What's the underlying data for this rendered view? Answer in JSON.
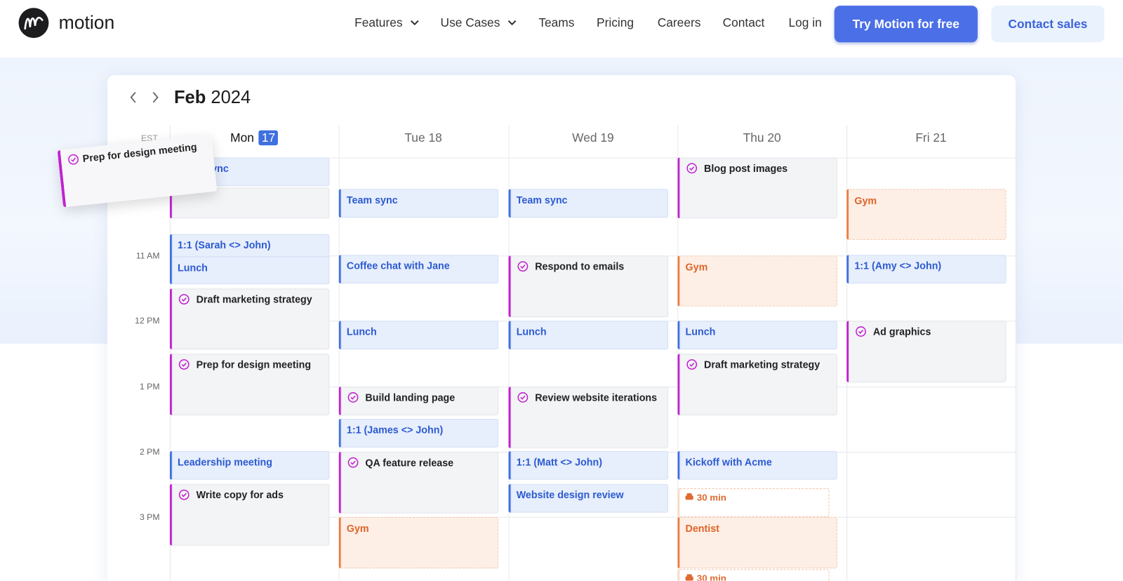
{
  "header": {
    "brand": "motion",
    "nav": [
      "Features",
      "Use Cases",
      "Teams",
      "Pricing",
      "Careers",
      "Contact",
      "Log in"
    ],
    "cta_primary": "Try Motion for free",
    "cta_secondary": "Contact sales"
  },
  "calendar": {
    "month": "Feb",
    "year": "2024",
    "timezone": "EST",
    "hours": [
      "11 AM",
      "12 PM",
      "1 PM",
      "2 PM",
      "3 PM"
    ],
    "days": [
      {
        "name": "Mon",
        "date": "17",
        "events": [
          {
            "title": "Team sync"
          },
          {
            "title": "1:1 (Sarah <> John)"
          },
          {
            "title": "Lunch"
          },
          {
            "title": "Draft marketing strategy"
          },
          {
            "title": "Prep for design meeting"
          },
          {
            "title": "Leadership meeting"
          },
          {
            "title": "Write copy for ads"
          }
        ]
      },
      {
        "name": "Tue",
        "date": "18",
        "events": [
          {
            "title": "Team sync"
          },
          {
            "title": "Coffee chat with Jane"
          },
          {
            "title": "Lunch"
          },
          {
            "title": "Build landing page"
          },
          {
            "title": "1:1 (James <> John)"
          },
          {
            "title": "QA feature release"
          },
          {
            "title": "Gym"
          }
        ]
      },
      {
        "name": "Wed",
        "date": "19",
        "events": [
          {
            "title": "Team sync"
          },
          {
            "title": "Respond to emails"
          },
          {
            "title": "Lunch"
          },
          {
            "title": "Review website iterations"
          },
          {
            "title": "1:1 (Matt <> John)"
          },
          {
            "title": "Website design review"
          }
        ]
      },
      {
        "name": "Thu",
        "date": "20",
        "events": [
          {
            "title": "Blog post images"
          },
          {
            "title": "Gym"
          },
          {
            "title": "Lunch"
          },
          {
            "title": "Draft marketing strategy"
          },
          {
            "title": "Kickoff with Acme"
          },
          {
            "title": "30 min"
          },
          {
            "title": "Dentist"
          },
          {
            "title": "30 min"
          }
        ]
      },
      {
        "name": "Fri",
        "date": "21",
        "events": [
          {
            "title": "Gym"
          },
          {
            "title": "1:1 (Amy <> John)"
          },
          {
            "title": "Ad graphics"
          }
        ]
      }
    ]
  },
  "drag_card": "Prep for design meeting"
}
